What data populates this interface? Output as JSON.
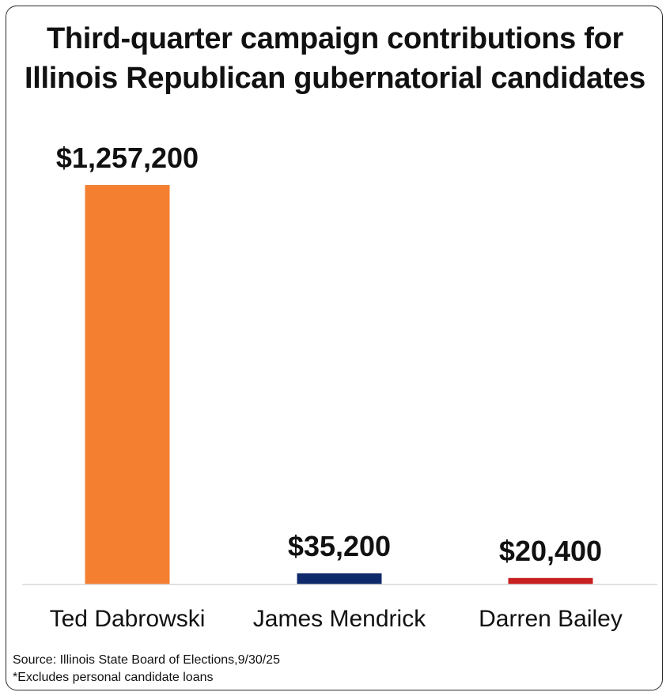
{
  "chart_data": {
    "type": "bar",
    "title": "Third-quarter campaign contributions for Illinois Republican gubernatorial candidates",
    "title_lines": [
      "Third-quarter campaign contributions for",
      "Illinois Republican gubernatorial candidates"
    ],
    "categories": [
      "Ted Dabrowski",
      "James Mendrick",
      "Darren Bailey"
    ],
    "values": [
      1257200,
      35200,
      20400
    ],
    "data_labels": [
      "$1,257,200",
      "$35,200",
      "$20,400"
    ],
    "colors": [
      "#f47f31",
      "#0f2a6b",
      "#c81f1f"
    ],
    "ylim": [
      0,
      1257200
    ],
    "xlabel": "",
    "ylabel": "",
    "grid": false,
    "legend": "none"
  },
  "footer": {
    "source": "Source: Illinois State Board of Elections,9/30/25",
    "note": "*Excludes personal candidate loans"
  }
}
